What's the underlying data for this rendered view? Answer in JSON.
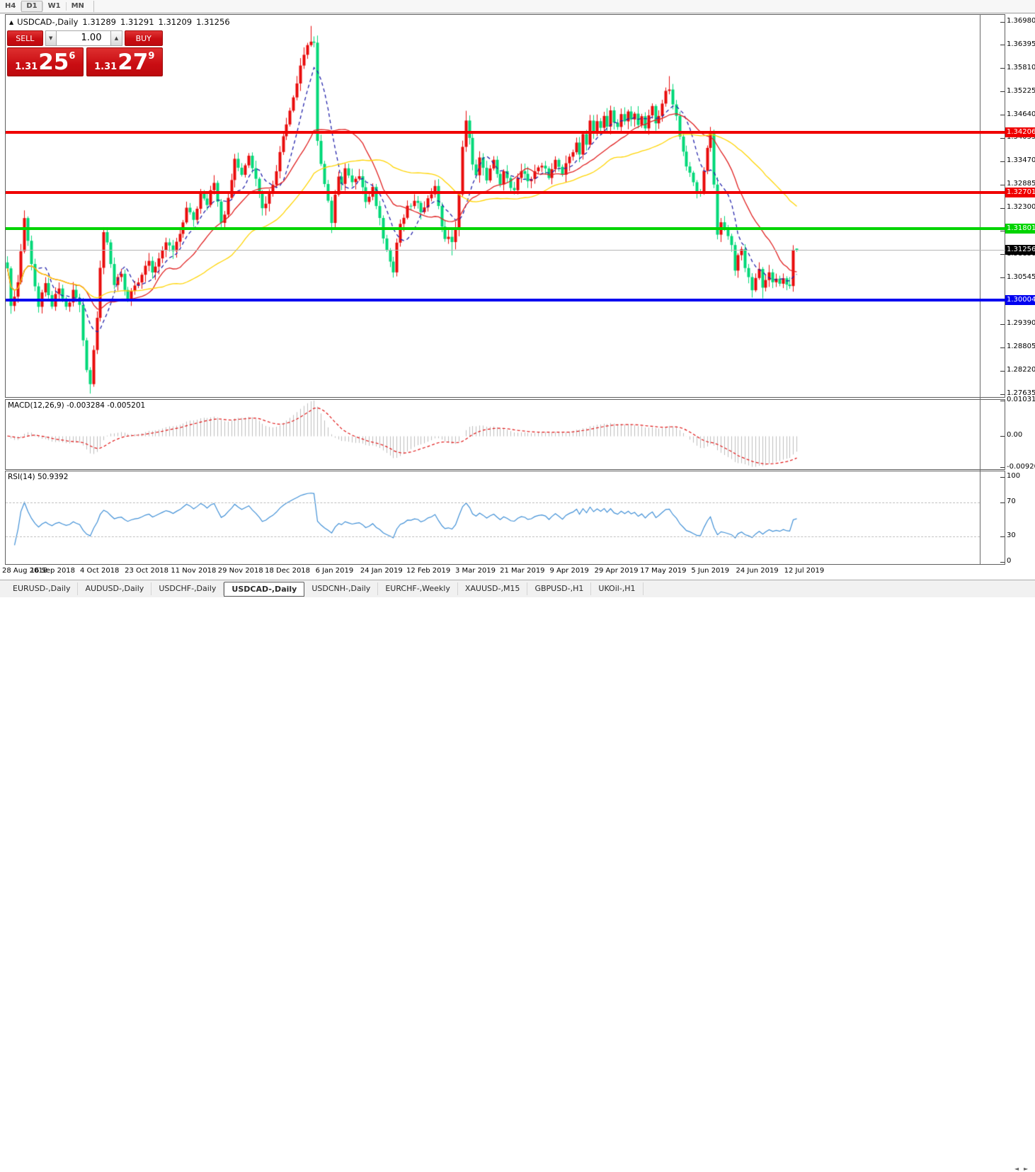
{
  "toolbar": {
    "periods": [
      "H4",
      "D1",
      "W1",
      "MN"
    ],
    "active_period": "D1"
  },
  "chart_header": {
    "collapse_arrow": "▲",
    "title": "USDCAD-,Daily",
    "open": "1.31289",
    "high": "1.31291",
    "low": "1.31209",
    "close": "1.31256"
  },
  "one_click": {
    "sell_label": "SELL",
    "buy_label": "BUY",
    "volume": "1.00",
    "spin_down": "▼",
    "spin_up": "▲",
    "sell_price_prefix": "1.31",
    "sell_price_big": "25",
    "sell_price_sup": "6",
    "buy_price_prefix": "1.31",
    "buy_price_big": "27",
    "buy_price_sup": "9"
  },
  "price_scale": {
    "ticks": [
      "1.36980",
      "1.36395",
      "1.35810",
      "1.35225",
      "1.34640",
      "1.34055",
      "1.33470",
      "1.32885",
      "1.32300",
      "1.31715",
      "1.31130",
      "1.30545",
      "1.29960",
      "1.29390",
      "1.28805",
      "1.28220",
      "1.27635"
    ]
  },
  "hlines": [
    {
      "id": "resistance-upper",
      "label": "1.34206",
      "value": 1.34206,
      "color": "#f00000",
      "thickness": 4
    },
    {
      "id": "resistance-lower",
      "label": "1.32701",
      "value": 1.32701,
      "color": "#f00000",
      "thickness": 4
    },
    {
      "id": "support-green",
      "label": "1.31801",
      "value": 1.31801,
      "color": "#00d400",
      "thickness": 4
    },
    {
      "id": "support-blue",
      "label": "1.30004",
      "value": 1.30004,
      "color": "#0000f0",
      "thickness": 4
    },
    {
      "id": "current-price",
      "label": "1.31256",
      "value": 1.31256,
      "color": "#b7b7b7",
      "tag_color": "#000000",
      "thickness": 1
    }
  ],
  "macd_pane": {
    "label": "MACD(12,26,9) -0.003284 -0.005201",
    "scale": [
      {
        "text": "0.010311",
        "value": 0.010311
      },
      {
        "text": "0.00",
        "value": 0
      },
      {
        "text": "-0.009203",
        "value": -0.009203
      }
    ]
  },
  "rsi_pane": {
    "label": "RSI(14) 50.9392",
    "scale": [
      {
        "text": "100",
        "value": 100
      },
      {
        "text": "70",
        "value": 70
      },
      {
        "text": "30",
        "value": 30
      },
      {
        "text": "0",
        "value": 0
      }
    ],
    "levels": [
      70,
      30
    ]
  },
  "date_axis": {
    "labels": [
      "28 Aug 2018",
      "16 Sep 2018",
      "4 Oct 2018",
      "23 Oct 2018",
      "11 Nov 2018",
      "29 Nov 2018",
      "18 Dec 2018",
      "6 Jan 2019",
      "24 Jan 2019",
      "12 Feb 2019",
      "3 Mar 2019",
      "21 Mar 2019",
      "9 Apr 2019",
      "29 Apr 2019",
      "17 May 2019",
      "5 Jun 2019",
      "24 Jun 2019",
      "12 Jul 2019"
    ]
  },
  "tab_bar": {
    "tabs": [
      "EURUSD-,Daily",
      "AUDUSD-,Daily",
      "USDCHF-,Daily",
      "USDCAD-,Daily",
      "USDCNH-,Daily",
      "EURCHF-,Weekly",
      "XAUUSD-,M15",
      "GBPUSD-,H1",
      "UKOil-,H1"
    ],
    "active": "USDCAD-,Daily",
    "scroll_left": "◄",
    "scroll_right": "►"
  },
  "chart_data": {
    "type": "candlestick",
    "symbol": "USDCAD-",
    "timeframe": "Daily",
    "title": "USDCAD-,Daily",
    "y_axis": {
      "min": 1.27635,
      "max": 1.3698,
      "tick_step": 0.00585
    },
    "x_axis_dates": [
      "28 Aug 2018",
      "16 Sep 2018",
      "4 Oct 2018",
      "23 Oct 2018",
      "11 Nov 2018",
      "29 Nov 2018",
      "18 Dec 2018",
      "6 Jan 2019",
      "24 Jan 2019",
      "12 Feb 2019",
      "3 Mar 2019",
      "21 Mar 2019",
      "9 Apr 2019",
      "29 Apr 2019",
      "17 May 2019",
      "5 Jun 2019",
      "24 Jun 2019",
      "12 Jul 2019"
    ],
    "candle_count": 230,
    "bull_color": "#e80b0b",
    "bear_color": "#00d878",
    "close_anchors": [
      [
        0,
        1.3075
      ],
      [
        1,
        1.298
      ],
      [
        3,
        1.304
      ],
      [
        5,
        1.32
      ],
      [
        6,
        1.315
      ],
      [
        8,
        1.303
      ],
      [
        9,
        1.2985
      ],
      [
        11,
        1.304
      ],
      [
        13,
        1.299
      ],
      [
        15,
        1.3035
      ],
      [
        17,
        1.298
      ],
      [
        19,
        1.302
      ],
      [
        21,
        1.299
      ],
      [
        22,
        1.29
      ],
      [
        23,
        1.282
      ],
      [
        24,
        1.279
      ],
      [
        25,
        1.288
      ],
      [
        26,
        1.296
      ],
      [
        27,
        1.308
      ],
      [
        28,
        1.317
      ],
      [
        29,
        1.314
      ],
      [
        30,
        1.309
      ],
      [
        31,
        1.3044
      ],
      [
        33,
        1.307
      ],
      [
        34,
        1.302
      ],
      [
        35,
        1.3005
      ],
      [
        37,
        1.3035
      ],
      [
        39,
        1.306
      ],
      [
        41,
        1.3105
      ],
      [
        42,
        1.307
      ],
      [
        44,
        1.311
      ],
      [
        46,
        1.315
      ],
      [
        48,
        1.312
      ],
      [
        50,
        1.316
      ],
      [
        52,
        1.323
      ],
      [
        54,
        1.32
      ],
      [
        56,
        1.3265
      ],
      [
        58,
        1.3245
      ],
      [
        60,
        1.3295
      ],
      [
        62,
        1.319
      ],
      [
        64,
        1.325
      ],
      [
        66,
        1.335
      ],
      [
        68,
        1.332
      ],
      [
        70,
        1.336
      ],
      [
        72,
        1.33
      ],
      [
        74,
        1.3225
      ],
      [
        76,
        1.327
      ],
      [
        78,
        1.332
      ],
      [
        80,
        1.341
      ],
      [
        82,
        1.347
      ],
      [
        84,
        1.355
      ],
      [
        86,
        1.362
      ],
      [
        88,
        1.3655
      ],
      [
        89,
        1.364
      ],
      [
        90,
        1.3395
      ],
      [
        91,
        1.334
      ],
      [
        92,
        1.329
      ],
      [
        93,
        1.325
      ],
      [
        94,
        1.3195
      ],
      [
        95,
        1.326
      ],
      [
        96,
        1.331
      ],
      [
        97,
        1.329
      ],
      [
        98,
        1.333
      ],
      [
        100,
        1.329
      ],
      [
        102,
        1.331
      ],
      [
        104,
        1.3245
      ],
      [
        106,
        1.3285
      ],
      [
        108,
        1.32
      ],
      [
        110,
        1.312
      ],
      [
        112,
        1.307
      ],
      [
        113,
        1.314
      ],
      [
        114,
        1.3185
      ],
      [
        116,
        1.323
      ],
      [
        118,
        1.3255
      ],
      [
        120,
        1.322
      ],
      [
        122,
        1.325
      ],
      [
        124,
        1.328
      ],
      [
        125,
        1.324
      ],
      [
        126,
        1.319
      ],
      [
        127,
        1.315
      ],
      [
        128,
        1.3165
      ],
      [
        129,
        1.314
      ],
      [
        130,
        1.318
      ],
      [
        131,
        1.327
      ],
      [
        132,
        1.339
      ],
      [
        133,
        1.3445
      ],
      [
        134,
        1.34
      ],
      [
        135,
        1.334
      ],
      [
        136,
        1.332
      ],
      [
        137,
        1.336
      ],
      [
        138,
        1.333
      ],
      [
        139,
        1.33
      ],
      [
        140,
        1.333
      ],
      [
        141,
        1.3355
      ],
      [
        142,
        1.332
      ],
      [
        143,
        1.3295
      ],
      [
        144,
        1.3325
      ],
      [
        145,
        1.331
      ],
      [
        146,
        1.328
      ],
      [
        147,
        1.3275
      ],
      [
        148,
        1.331
      ],
      [
        149,
        1.333
      ],
      [
        151,
        1.33
      ],
      [
        153,
        1.332
      ],
      [
        155,
        1.334
      ],
      [
        157,
        1.331
      ],
      [
        159,
        1.335
      ],
      [
        161,
        1.332
      ],
      [
        163,
        1.3355
      ],
      [
        165,
        1.339
      ],
      [
        166,
        1.336
      ],
      [
        167,
        1.342
      ],
      [
        168,
        1.3395
      ],
      [
        169,
        1.3445
      ],
      [
        170,
        1.342
      ],
      [
        171,
        1.345
      ],
      [
        172,
        1.343
      ],
      [
        173,
        1.3465
      ],
      [
        174,
        1.344
      ],
      [
        175,
        1.347
      ],
      [
        176,
        1.345
      ],
      [
        177,
        1.3435
      ],
      [
        178,
        1.3465
      ],
      [
        179,
        1.3445
      ],
      [
        180,
        1.348
      ],
      [
        181,
        1.3455
      ],
      [
        182,
        1.347
      ],
      [
        183,
        1.3445
      ],
      [
        184,
        1.3465
      ],
      [
        185,
        1.3435
      ],
      [
        186,
        1.346
      ],
      [
        187,
        1.348
      ],
      [
        188,
        1.3445
      ],
      [
        189,
        1.3465
      ],
      [
        190,
        1.35
      ],
      [
        191,
        1.352
      ],
      [
        192,
        1.3525
      ],
      [
        193,
        1.349
      ],
      [
        194,
        1.3455
      ],
      [
        195,
        1.341
      ],
      [
        196,
        1.337
      ],
      [
        197,
        1.334
      ],
      [
        199,
        1.329
      ],
      [
        200,
        1.327
      ],
      [
        201,
        1.3268
      ],
      [
        202,
        1.333
      ],
      [
        203,
        1.3385
      ],
      [
        204,
        1.342
      ],
      [
        205,
        1.329
      ],
      [
        206,
        1.317
      ],
      [
        207,
        1.3195
      ],
      [
        208,
        1.3175
      ],
      [
        209,
        1.316
      ],
      [
        210,
        1.314
      ],
      [
        211,
        1.308
      ],
      [
        212,
        1.311
      ],
      [
        213,
        1.313
      ],
      [
        214,
        1.3085
      ],
      [
        215,
        1.306
      ],
      [
        216,
        1.3018
      ],
      [
        217,
        1.305
      ],
      [
        218,
        1.308
      ],
      [
        219,
        1.303
      ],
      [
        220,
        1.3055
      ],
      [
        221,
        1.3075
      ],
      [
        222,
        1.304
      ],
      [
        223,
        1.306
      ],
      [
        224,
        1.3038
      ],
      [
        225,
        1.3052
      ],
      [
        226,
        1.3042
      ],
      [
        227,
        1.3035
      ],
      [
        228,
        1.3126
      ],
      [
        229,
        1.3126
      ]
    ],
    "wick_overrides": {
      "5": {
        "high": 1.3225
      },
      "24": {
        "low": 1.2765
      },
      "28": {
        "high": 1.3182
      },
      "88": {
        "high": 1.3688
      },
      "94": {
        "low": 1.3168
      },
      "129": {
        "low": 1.3112
      },
      "133": {
        "high": 1.3475
      },
      "192": {
        "high": 1.3562
      },
      "200": {
        "low": 1.3255
      },
      "216": {
        "low": 1.3006
      },
      "219": {
        "low": 1.3004
      }
    },
    "moving_averages": [
      {
        "period": 8,
        "color": "#2323ab",
        "style": "dashed"
      },
      {
        "period": 20,
        "color": "#e02020",
        "style": "solid"
      },
      {
        "period": 45,
        "color": "#ffd400",
        "style": "solid"
      }
    ],
    "horizontal_lines": [
      {
        "value": 1.34206,
        "color": "#f00000"
      },
      {
        "value": 1.32701,
        "color": "#f00000"
      },
      {
        "value": 1.31801,
        "color": "#00d400"
      },
      {
        "value": 1.30004,
        "color": "#0000f0"
      }
    ],
    "current_price": 1.31256,
    "last_ohlc": {
      "open": 1.31289,
      "high": 1.31291,
      "low": 1.31209,
      "close": 1.31256
    },
    "macd": {
      "fast": 12,
      "slow": 26,
      "signal_period": 9,
      "last_main": -0.003284,
      "last_signal": -0.005201,
      "range": [
        -0.009203,
        0.010311
      ],
      "histogram_color": "#bdbdbd",
      "signal_color": "#e01414"
    },
    "rsi": {
      "period": 14,
      "last": 50.9392,
      "range": [
        0,
        100
      ],
      "levels": [
        70,
        30
      ],
      "color": "#3f8fd6"
    }
  }
}
